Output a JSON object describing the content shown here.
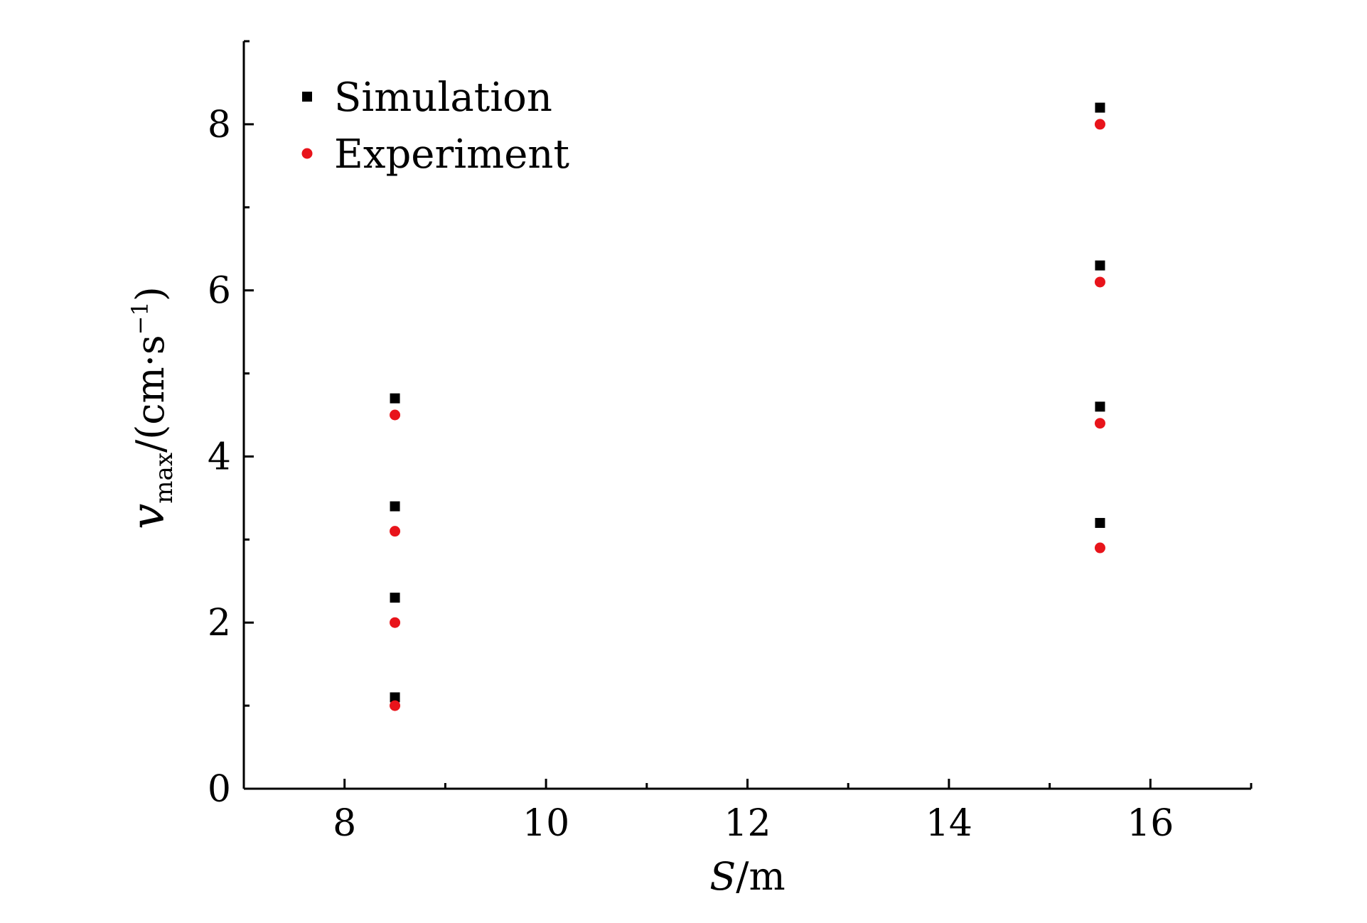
{
  "chart_data": {
    "type": "scatter",
    "xlabel": {
      "var": "S",
      "unit": "/m"
    },
    "ylabel": {
      "var": "v",
      "sub": "max",
      "unit_open": "/(cm·s",
      "sup": "−1",
      "unit_close": ")"
    },
    "xlim": [
      7,
      17
    ],
    "ylim": [
      0,
      9
    ],
    "x_major_ticks": [
      8,
      10,
      12,
      14,
      16
    ],
    "x_minor_ticks": [
      9,
      11,
      13,
      15,
      17
    ],
    "y_major_ticks": [
      0,
      2,
      4,
      6,
      8
    ],
    "y_minor_ticks": [
      1,
      3,
      5,
      7,
      9
    ],
    "grid": false,
    "legend": {
      "position": "top-left"
    },
    "series": [
      {
        "name": "Simulation",
        "marker": "square",
        "color": "#000000",
        "points": [
          {
            "x": 8.5,
            "y": 1.1
          },
          {
            "x": 8.5,
            "y": 2.3
          },
          {
            "x": 8.5,
            "y": 3.4
          },
          {
            "x": 8.5,
            "y": 4.7
          },
          {
            "x": 15.5,
            "y": 3.2
          },
          {
            "x": 15.5,
            "y": 4.6
          },
          {
            "x": 15.5,
            "y": 6.3
          },
          {
            "x": 15.5,
            "y": 8.2
          }
        ]
      },
      {
        "name": "Experiment",
        "marker": "circle",
        "color": "#e8141b",
        "points": [
          {
            "x": 8.5,
            "y": 1.0
          },
          {
            "x": 8.5,
            "y": 2.0
          },
          {
            "x": 8.5,
            "y": 3.1
          },
          {
            "x": 8.5,
            "y": 4.5
          },
          {
            "x": 15.5,
            "y": 2.9
          },
          {
            "x": 15.5,
            "y": 4.4
          },
          {
            "x": 15.5,
            "y": 6.1
          },
          {
            "x": 15.5,
            "y": 8.0
          }
        ]
      }
    ]
  }
}
